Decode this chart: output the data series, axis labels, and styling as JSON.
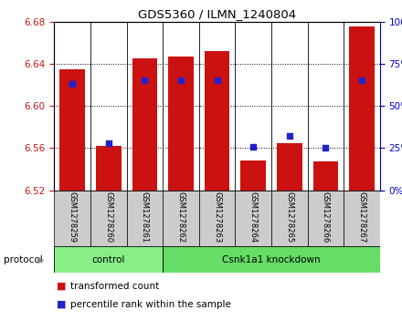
{
  "title": "GDS5360 / ILMN_1240804",
  "samples": [
    "GSM1278259",
    "GSM1278260",
    "GSM1278261",
    "GSM1278262",
    "GSM1278263",
    "GSM1278264",
    "GSM1278265",
    "GSM1278266",
    "GSM1278267"
  ],
  "transformed_count": [
    6.635,
    6.562,
    6.645,
    6.647,
    6.652,
    6.548,
    6.565,
    6.547,
    6.675
  ],
  "percentile_rank": [
    63,
    28,
    65,
    65,
    65,
    26,
    32,
    25,
    65
  ],
  "ylim_left": [
    6.52,
    6.68
  ],
  "ylim_right": [
    0,
    100
  ],
  "yticks_left": [
    6.52,
    6.56,
    6.6,
    6.64,
    6.68
  ],
  "yticks_right": [
    0,
    25,
    50,
    75,
    100
  ],
  "bar_color": "#cc1111",
  "dot_color": "#2222cc",
  "protocol_groups": [
    {
      "label": "control",
      "start": 0,
      "end": 2,
      "color": "#88ee88"
    },
    {
      "label": "Csnk1a1 knockdown",
      "start": 3,
      "end": 8,
      "color": "#66dd66"
    }
  ],
  "protocol_label": "protocol",
  "legend_items": [
    {
      "label": "transformed count",
      "color": "#cc1111"
    },
    {
      "label": "percentile rank within the sample",
      "color": "#2222cc"
    }
  ],
  "right_axis_color": "#0000cc",
  "tick_bg_color": "#cccccc",
  "bar_bottom": 6.52,
  "bar_width": 0.7
}
